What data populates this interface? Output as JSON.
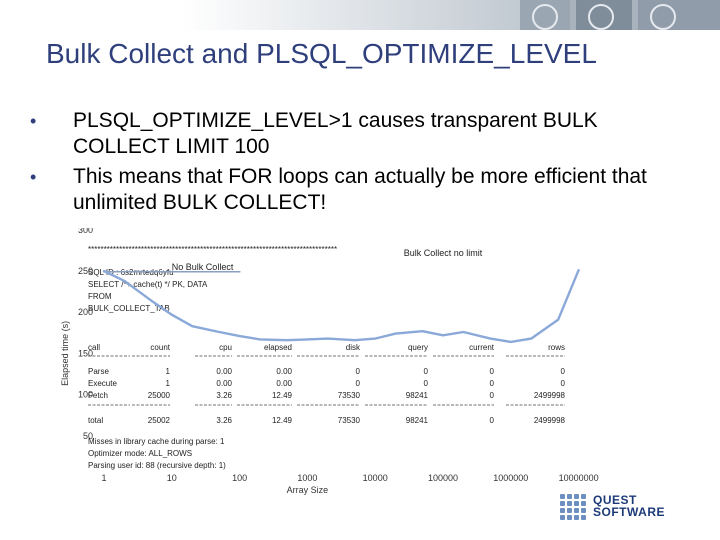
{
  "slide": {
    "title": "Bulk Collect and PLSQL_OPTIMIZE_LEVEL",
    "bullets": [
      "PLSQL_OPTIMIZE_LEVEL>1 causes transparent BULK COLLECT LIMIT 100",
      "This means that FOR loops can actually be more efficient that unlimited BULK COLLECT!"
    ],
    "logo_text_line1": "QUEST",
    "logo_text_line2": "SOFTWARE",
    "brand_color": "#2e3f7c"
  },
  "overlay": {
    "stars": "********************************************************************************",
    "sql_lines": [
      "SQL ID : 6s2mrtedq6yfu",
      "SELECT /*+ cache(t) */ PK, DATA",
      "FROM",
      "BULK_COLLECT_TAB"
    ],
    "table_header": [
      "call",
      "count",
      "cpu",
      "elapsed",
      "disk",
      "query",
      "current",
      "rows"
    ],
    "table_rows": [
      [
        "Parse",
        "1",
        "0.00",
        "0.00",
        "0",
        "0",
        "0",
        "0"
      ],
      [
        "Execute",
        "1",
        "0.00",
        "0.00",
        "0",
        "0",
        "0",
        "0"
      ],
      [
        "Fetch",
        "25000",
        "3.26",
        "12.49",
        "73530",
        "98241",
        "0",
        "2499998"
      ],
      [
        "total",
        "25002",
        "3.26",
        "12.49",
        "73530",
        "98241",
        "0",
        "2499998"
      ]
    ],
    "footer_lines": [
      "Misses in library cache during parse: 1",
      "Optimizer mode: ALL_ROWS",
      "Parsing user id: 88     (recursive depth: 1)"
    ]
  },
  "chart_data": {
    "type": "line",
    "xlabel": "Array Size",
    "ylabel": "Elapsed time (s)",
    "xscale": "log",
    "x_ticks": [
      "1",
      "10",
      "100",
      "1000",
      "10000",
      "100000",
      "1000000",
      "10000000"
    ],
    "y_ticks": [
      "50",
      "100",
      "150",
      "200",
      "250",
      "300"
    ],
    "ylim": [
      0,
      300
    ],
    "grid": false,
    "series": [
      {
        "name": "No Bulk Collect",
        "color": "#8a9fc2",
        "x": [
          1,
          100
        ],
        "y": [
          249,
          249
        ]
      },
      {
        "name": "Bulk Collect no limit",
        "color": "#8aa8d8",
        "x": [
          1,
          2,
          5,
          10,
          20,
          50,
          100,
          200,
          500,
          1000,
          2000,
          5000,
          10000,
          20000,
          50000,
          100000,
          200000,
          500000,
          1000000,
          2000000,
          5000000,
          10000000
        ],
        "y": [
          250,
          238,
          214,
          197,
          183,
          176,
          171,
          167,
          166,
          167,
          168,
          166,
          168,
          174,
          177,
          172,
          176,
          168,
          164,
          168,
          191,
          251
        ]
      }
    ],
    "annotations": [
      {
        "text": "No Bulk Collect",
        "x": 10,
        "y": 251
      },
      {
        "text": "Bulk Collect no limit",
        "x": 100000,
        "y": 268
      }
    ]
  }
}
